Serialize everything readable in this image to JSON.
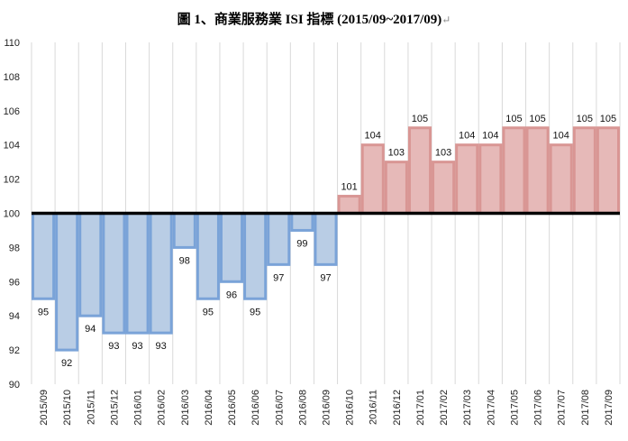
{
  "title": "圖 1、商業服務業 ISI 指標 (2015/09~2017/09)",
  "title_mark": "↵",
  "chart_data": {
    "type": "bar",
    "title": "圖 1、商業服務業 ISI 指標 (2015/09~2017/09)",
    "xlabel": "",
    "ylabel": "",
    "ylim": [
      90,
      110
    ],
    "yticks": [
      90,
      92,
      94,
      96,
      98,
      100,
      102,
      104,
      106,
      108,
      110
    ],
    "baseline": 100,
    "grid": "vertical",
    "legend": "none",
    "categories": [
      "2015/09",
      "2015/10",
      "2015/11",
      "2015/12",
      "2016/01",
      "2016/02",
      "2016/03",
      "2016/04",
      "2016/05",
      "2016/06",
      "2016/07",
      "2016/08",
      "2016/09",
      "2016/10",
      "2016/11",
      "2016/12",
      "2017/01",
      "2017/02",
      "2017/03",
      "2017/04",
      "2017/05",
      "2017/06",
      "2017/07",
      "2017/08",
      "2017/09"
    ],
    "values": [
      95,
      92,
      94,
      93,
      93,
      93,
      98,
      95,
      96,
      95,
      97,
      99,
      97,
      101,
      104,
      103,
      105,
      103,
      104,
      104,
      105,
      105,
      104,
      105,
      105
    ],
    "colors": {
      "below_fill": "#b9cde5",
      "below_stroke": "#7aa3d8",
      "above_fill": "#e6b9b8",
      "above_stroke": "#d99694",
      "baseline": "#000000",
      "grid": "#d9d9d9"
    }
  }
}
